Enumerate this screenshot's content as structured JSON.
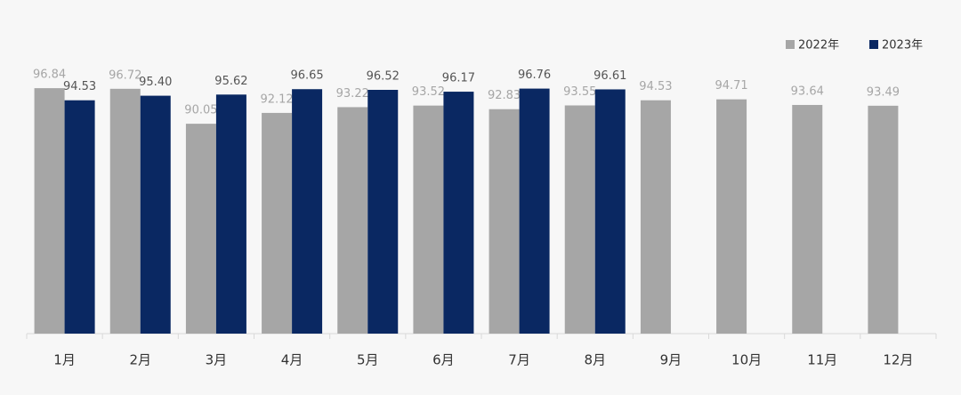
{
  "chart_data": {
    "type": "bar",
    "categories": [
      "1月",
      "2月",
      "3月",
      "4月",
      "5月",
      "6月",
      "7月",
      "8月",
      "9月",
      "10月",
      "11月",
      "12月"
    ],
    "series": [
      {
        "name": "2022年",
        "color": "#a6a6a6",
        "label_color": "#a6a6a6",
        "values": [
          96.84,
          96.72,
          90.05,
          92.12,
          93.22,
          93.52,
          92.83,
          93.55,
          94.53,
          94.71,
          93.64,
          93.49
        ],
        "value_labels": [
          "96.84",
          "96.72",
          "90.05",
          "92.12",
          "93.22",
          "93.52",
          "92.83",
          "93.55",
          "94.53",
          "94.71",
          "93.64",
          "93.49"
        ]
      },
      {
        "name": "2023年",
        "color": "#0a2862",
        "label_color": "#555555",
        "values": [
          94.53,
          95.4,
          95.62,
          96.65,
          96.52,
          96.17,
          96.76,
          96.61,
          null,
          null,
          null,
          null
        ],
        "value_labels": [
          "94.53",
          "95.40",
          "95.62",
          "96.65",
          "96.52",
          "96.17",
          "96.76",
          "96.61",
          null,
          null,
          null,
          null
        ]
      }
    ],
    "ylim": [
      50,
      100
    ],
    "legend": "top-right"
  }
}
